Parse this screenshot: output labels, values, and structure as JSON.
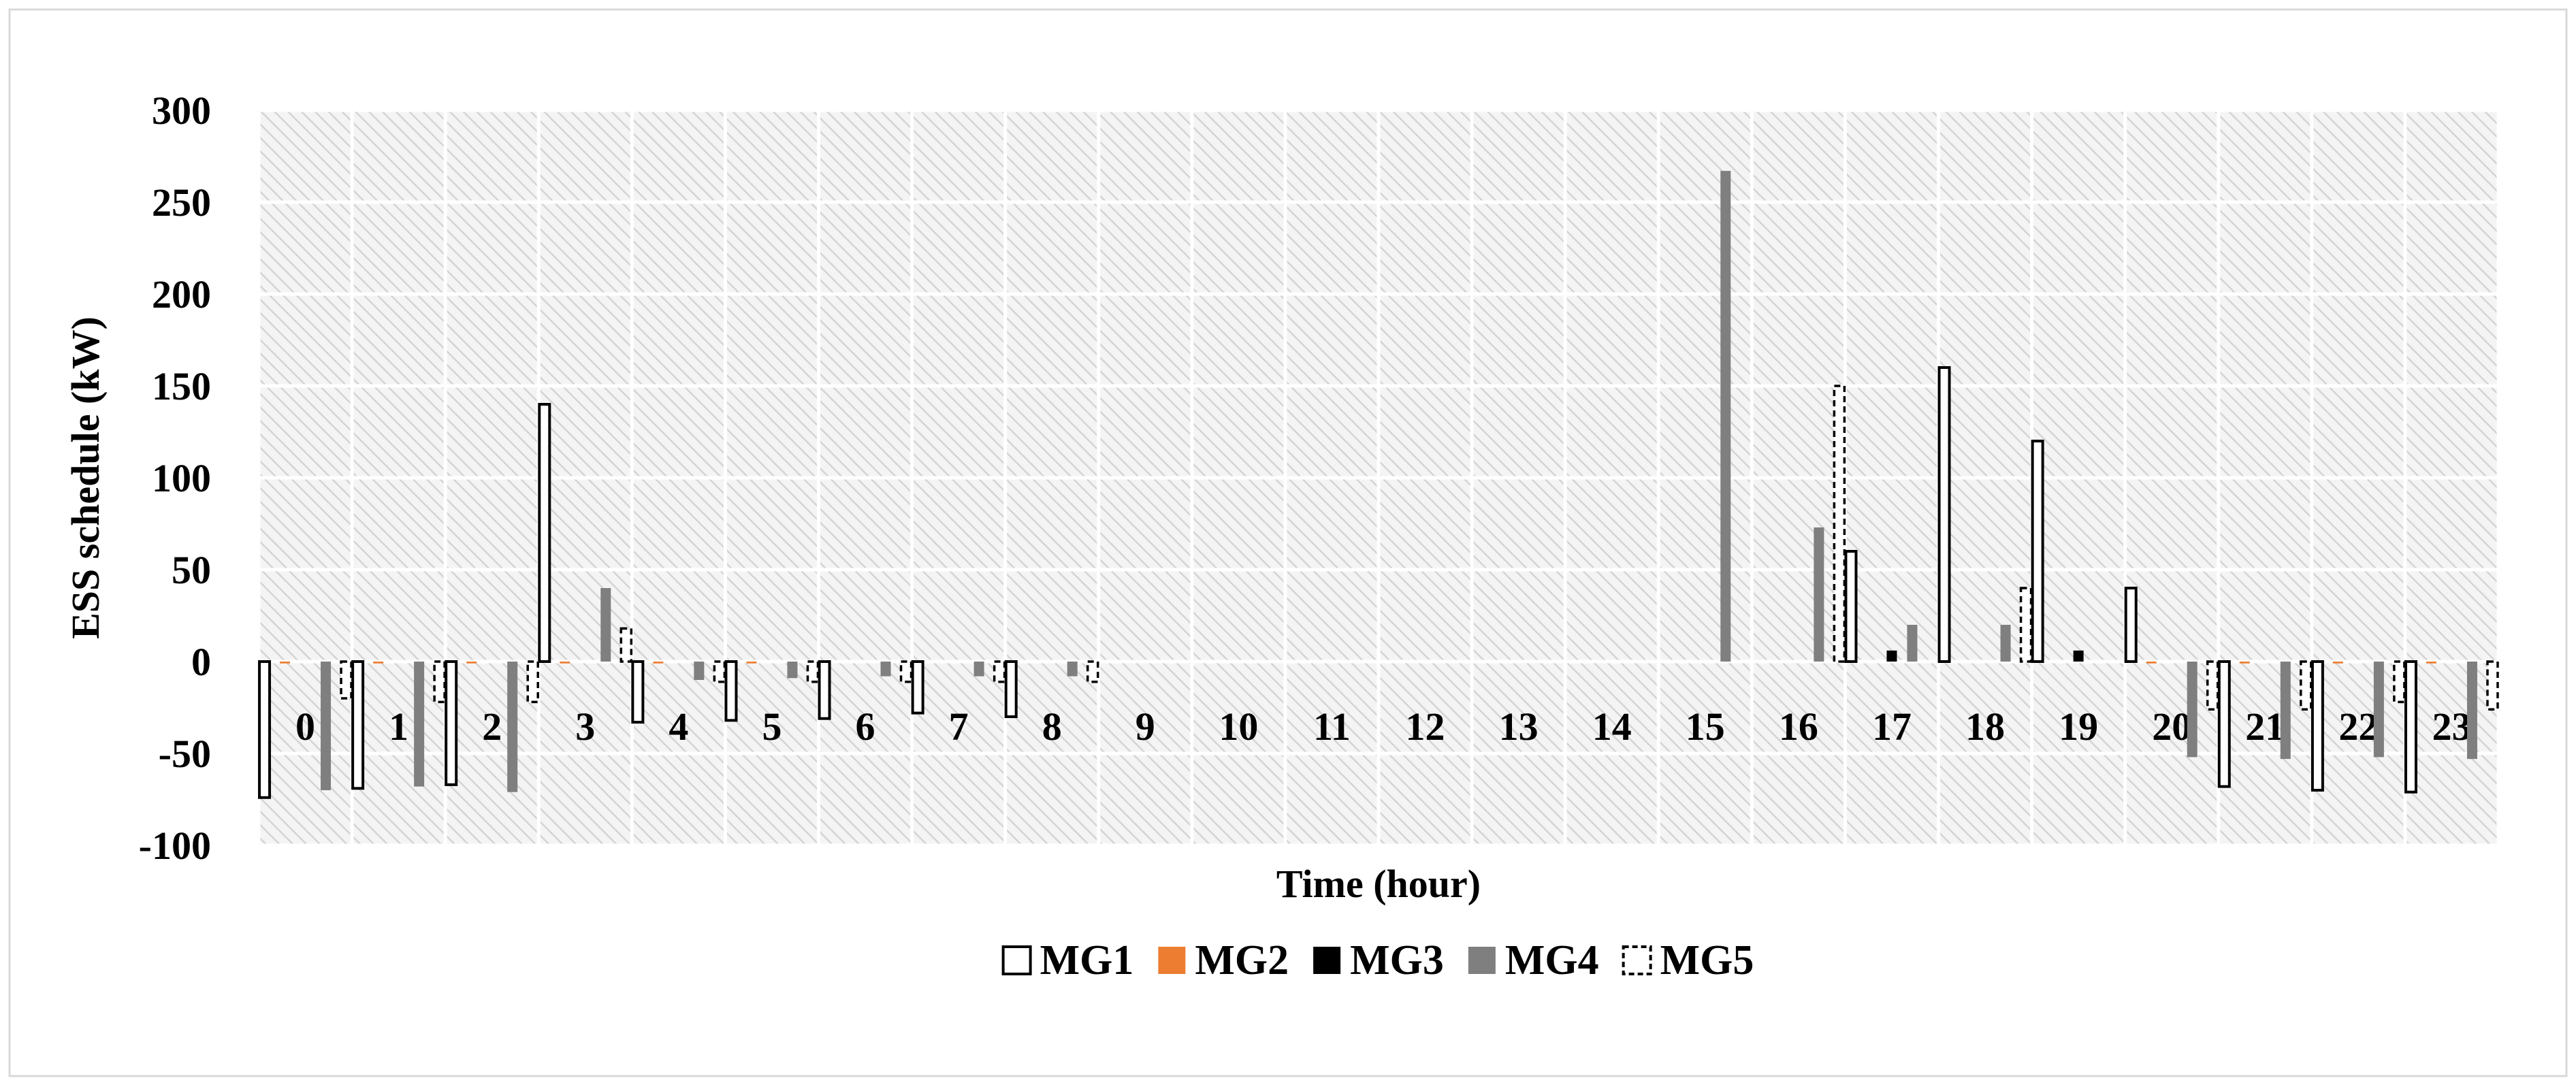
{
  "chart_data": {
    "type": "bar",
    "title": "",
    "xlabel": "Time (hour)",
    "ylabel": "ESS schedule (kW)",
    "ylim": [
      -100,
      300
    ],
    "yticks": [
      -100,
      -50,
      0,
      50,
      100,
      150,
      200,
      250,
      300
    ],
    "grid": true,
    "legend_position": "bottom",
    "categories": [
      "0",
      "1",
      "2",
      "3",
      "4",
      "5",
      "6",
      "7",
      "8",
      "9",
      "10",
      "11",
      "12",
      "13",
      "14",
      "15",
      "16",
      "17",
      "18",
      "19",
      "20",
      "21",
      "22",
      "23"
    ],
    "series": [
      {
        "name": "MG1",
        "style": "outline",
        "color": "#000000",
        "values": [
          -74,
          -69,
          -67,
          140,
          -33,
          -32,
          -31,
          -28,
          -30,
          0,
          0,
          0,
          0,
          0,
          0,
          0,
          0,
          60,
          160,
          120,
          40,
          -68,
          -70,
          -71
        ]
      },
      {
        "name": "MG2",
        "style": "solid",
        "color": "#ED7D31",
        "values": [
          -1,
          -1,
          -1,
          -1,
          -1,
          -1,
          0,
          0,
          0,
          0,
          0,
          0,
          0,
          0,
          0,
          0,
          0,
          0,
          0,
          0,
          -1,
          -1,
          -1,
          -1
        ]
      },
      {
        "name": "MG3",
        "style": "solid",
        "color": "#000000",
        "values": [
          0,
          0,
          0,
          0,
          0,
          0,
          0,
          0,
          0,
          0,
          0,
          0,
          0,
          0,
          0,
          0,
          0,
          6,
          0,
          6,
          0,
          0,
          0,
          0
        ]
      },
      {
        "name": "MG4",
        "style": "solid",
        "color": "#7F7F7F",
        "values": [
          -70,
          -68,
          -71,
          40,
          -10,
          -9,
          -8,
          -8,
          -8,
          0,
          0,
          0,
          0,
          0,
          0,
          267,
          73,
          20,
          20,
          0,
          -52,
          -53,
          -52,
          -53
        ]
      },
      {
        "name": "MG5",
        "style": "dashed",
        "color": "#000000",
        "values": [
          -20,
          -22,
          -22,
          18,
          -11,
          -11,
          -11,
          -11,
          -11,
          0,
          0,
          0,
          0,
          0,
          0,
          0,
          150,
          0,
          40,
          0,
          -26,
          -26,
          -22,
          -26
        ]
      }
    ]
  }
}
